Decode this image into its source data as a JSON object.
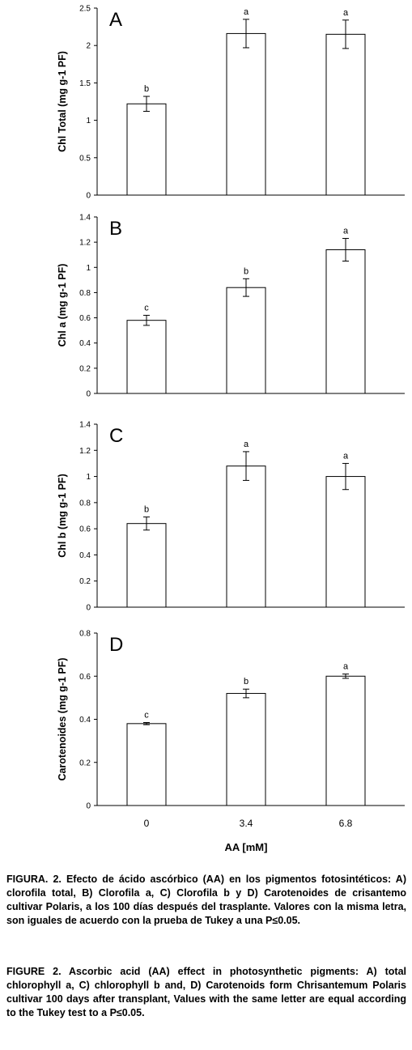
{
  "chart_data": [
    {
      "type": "bar",
      "panel_letter": "A",
      "categories": [
        "0",
        "3.4",
        "6.8"
      ],
      "values": [
        1.22,
        2.16,
        2.15
      ],
      "errors": [
        0.1,
        0.19,
        0.19
      ],
      "letters": [
        "b",
        "a",
        "a"
      ],
      "ylabel": "Chl Total (mg g-1 PF)",
      "ylim": [
        0,
        2.5
      ],
      "yticks": [
        "0",
        "0.5",
        "1",
        "1.5",
        "2",
        "2.5"
      ]
    },
    {
      "type": "bar",
      "panel_letter": "B",
      "categories": [
        "0",
        "3.4",
        "6.8"
      ],
      "values": [
        0.58,
        0.84,
        1.14
      ],
      "errors": [
        0.04,
        0.07,
        0.09
      ],
      "letters": [
        "c",
        "b",
        "a"
      ],
      "ylabel": "Chl a (mg g-1 PF)",
      "ylim": [
        0,
        1.4
      ],
      "yticks": [
        "0",
        "0.2",
        "0.4",
        "0.6",
        "0.8",
        "1",
        "1.2",
        "1.4"
      ]
    },
    {
      "type": "bar",
      "panel_letter": "C",
      "categories": [
        "0",
        "3.4",
        "6.8"
      ],
      "values": [
        0.64,
        1.08,
        1.0
      ],
      "errors": [
        0.05,
        0.11,
        0.1
      ],
      "letters": [
        "b",
        "a",
        "a"
      ],
      "ylabel": "Chl b (mg g-1 PF)",
      "ylim": [
        0,
        1.4
      ],
      "yticks": [
        "0",
        "0.2",
        "0.4",
        "0.6",
        "0.8",
        "1",
        "1.2",
        "1.4"
      ]
    },
    {
      "type": "bar",
      "panel_letter": "D",
      "categories": [
        "0",
        "3.4",
        "6.8"
      ],
      "values": [
        0.38,
        0.52,
        0.6
      ],
      "errors": [
        0.005,
        0.02,
        0.01
      ],
      "letters": [
        "c",
        "b",
        "a"
      ],
      "ylabel": "Carotenoides (mg g-1 PF)",
      "ylim": [
        0,
        0.8
      ],
      "yticks": [
        "0",
        "0.2",
        "0.4",
        "0.6",
        "0.8"
      ]
    }
  ],
  "xlabel": "AA [mM]",
  "caption_es": {
    "label": "FIGURA. 2.",
    "text": "Efecto de ácido ascórbico (AA) en los pigmentos fotosintéticos: A) clorofila total, B) Clorofila a, C) Clorofila b y D) Carotenoides de crisantemo cultivar Polaris, a los 100 días después del trasplante. Valores con la misma letra, son iguales de acuerdo con la prueba de Tukey a una P≤0.05."
  },
  "caption_en": {
    "label": "FIGURE 2.",
    "text": "Ascorbic acid (AA) effect in photosynthetic pigments: A) total chlorophyll a, C) chlorophyll b and, D) Carotenoids form Chrisantemum Polaris cultivar 100 days after transplant, Values with the same letter are equal according to the Tukey test to a P≤0.05."
  }
}
